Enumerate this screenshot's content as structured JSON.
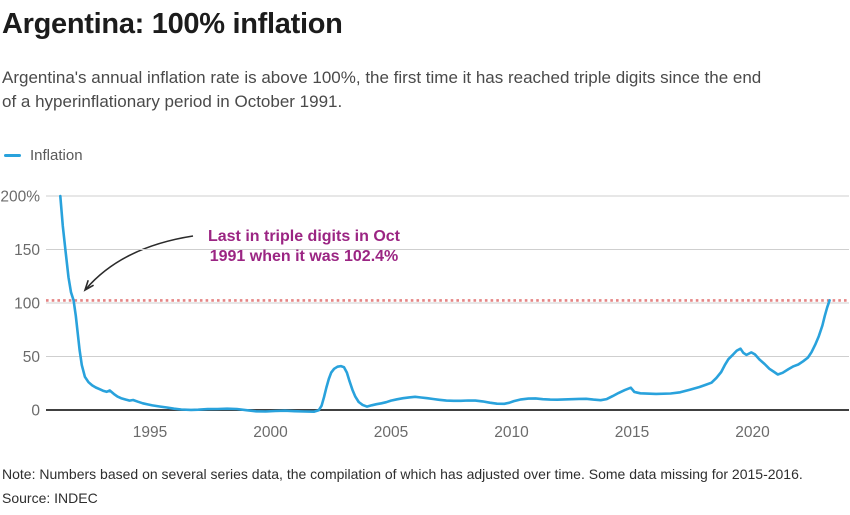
{
  "header": {
    "title": "Argentina: 100% inflation",
    "subtitle": "Argentina's annual inflation rate is above 100%, the first time it has reached triple digits since the end\nof a hyperinflationary period in October 1991."
  },
  "legend": {
    "label": "Inflation",
    "color": "#29a2dc"
  },
  "annotation": {
    "text": "Last in triple digits in Oct\n1991 when it was 102.4%",
    "color": "#9b2583"
  },
  "footer": {
    "note": "Note: Numbers based on several series data, the compilation of which has adjusted over time. Some data missing for 2015-2016.",
    "source": "Source: INDEC"
  },
  "chart_data": {
    "type": "line",
    "title": "Argentina: 100% inflation",
    "xlabel": "",
    "ylabel": "",
    "grid": true,
    "legend_position": "top-left",
    "x_range": [
      1991.25,
      2023.4
    ],
    "ylim": [
      -5,
      200
    ],
    "yticks": [
      {
        "value": 0,
        "label": "0"
      },
      {
        "value": 50,
        "label": "50"
      },
      {
        "value": 100,
        "label": "100"
      },
      {
        "value": 150,
        "label": "150"
      },
      {
        "value": 200,
        "label": "200%"
      }
    ],
    "xticks": [
      1995,
      2000,
      2005,
      2010,
      2015,
      2020
    ],
    "threshold": {
      "value": 102.4,
      "color": "#e58484",
      "meaning": "Oct 1991 level of 102.4%"
    },
    "colors": {
      "line": "#29a2dc",
      "grid": "#cfcfcf",
      "axis": "#404040",
      "tick_text": "#6b6b6b"
    },
    "series": [
      {
        "name": "Inflation",
        "color": "#29a2dc",
        "points": [
          [
            1991.28,
            200
          ],
          [
            1991.38,
            172
          ],
          [
            1991.5,
            148
          ],
          [
            1991.62,
            124
          ],
          [
            1991.72,
            110
          ],
          [
            1991.83,
            102.4
          ],
          [
            1991.92,
            88
          ],
          [
            1992.0,
            72
          ],
          [
            1992.08,
            56
          ],
          [
            1992.17,
            42
          ],
          [
            1992.3,
            31
          ],
          [
            1992.45,
            26
          ],
          [
            1992.6,
            23
          ],
          [
            1992.75,
            21
          ],
          [
            1992.9,
            19.5
          ],
          [
            1993.05,
            18
          ],
          [
            1993.2,
            17
          ],
          [
            1993.33,
            18.2
          ],
          [
            1993.5,
            15
          ],
          [
            1993.65,
            12.5
          ],
          [
            1993.8,
            11
          ],
          [
            1994.0,
            9.7
          ],
          [
            1994.15,
            8.8
          ],
          [
            1994.3,
            9.3
          ],
          [
            1994.5,
            7.8
          ],
          [
            1994.7,
            6.3
          ],
          [
            1994.9,
            5.2
          ],
          [
            1995.1,
            4.3
          ],
          [
            1995.4,
            3.3
          ],
          [
            1995.7,
            2.3
          ],
          [
            1996.0,
            1.2
          ],
          [
            1996.3,
            0.5
          ],
          [
            1996.7,
            0.1
          ],
          [
            1997.0,
            0.3
          ],
          [
            1997.4,
            0.8
          ],
          [
            1997.8,
            0.9
          ],
          [
            1998.2,
            1.2
          ],
          [
            1998.6,
            0.9
          ],
          [
            1999.0,
            -0.2
          ],
          [
            1999.4,
            -1.2
          ],
          [
            1999.8,
            -1.4
          ],
          [
            2000.2,
            -0.9
          ],
          [
            2000.6,
            -0.7
          ],
          [
            2001.0,
            -1.1
          ],
          [
            2001.4,
            -1.4
          ],
          [
            2001.8,
            -1.6
          ],
          [
            2002.0,
            -0.3
          ],
          [
            2002.12,
            4
          ],
          [
            2002.22,
            12
          ],
          [
            2002.32,
            21
          ],
          [
            2002.42,
            29
          ],
          [
            2002.52,
            35
          ],
          [
            2002.64,
            38.5
          ],
          [
            2002.78,
            40.5
          ],
          [
            2002.92,
            41
          ],
          [
            2003.05,
            40
          ],
          [
            2003.17,
            35
          ],
          [
            2003.28,
            27
          ],
          [
            2003.4,
            19
          ],
          [
            2003.52,
            12.5
          ],
          [
            2003.66,
            7.5
          ],
          [
            2003.82,
            4.8
          ],
          [
            2004.0,
            3.2
          ],
          [
            2004.2,
            4.4
          ],
          [
            2004.4,
            5.4
          ],
          [
            2004.6,
            6.3
          ],
          [
            2004.8,
            7.3
          ],
          [
            2005.0,
            8.8
          ],
          [
            2005.25,
            10
          ],
          [
            2005.5,
            11
          ],
          [
            2005.75,
            11.8
          ],
          [
            2006.0,
            12.3
          ],
          [
            2006.25,
            11.7
          ],
          [
            2006.5,
            11
          ],
          [
            2006.75,
            10.3
          ],
          [
            2007.0,
            9.5
          ],
          [
            2007.3,
            8.8
          ],
          [
            2007.6,
            8.6
          ],
          [
            2007.9,
            8.6
          ],
          [
            2008.2,
            8.9
          ],
          [
            2008.5,
            8.8
          ],
          [
            2008.8,
            8
          ],
          [
            2009.1,
            6.8
          ],
          [
            2009.4,
            5.9
          ],
          [
            2009.7,
            5.8
          ],
          [
            2009.9,
            6.7
          ],
          [
            2010.1,
            8.3
          ],
          [
            2010.4,
            9.9
          ],
          [
            2010.7,
            10.7
          ],
          [
            2011.0,
            10.8
          ],
          [
            2011.3,
            10.1
          ],
          [
            2011.6,
            9.7
          ],
          [
            2011.9,
            9.6
          ],
          [
            2012.2,
            9.9
          ],
          [
            2012.5,
            10.1
          ],
          [
            2012.8,
            10.4
          ],
          [
            2013.1,
            10.5
          ],
          [
            2013.4,
            9.7
          ],
          [
            2013.7,
            9.2
          ],
          [
            2013.95,
            10.2
          ],
          [
            2014.2,
            13
          ],
          [
            2014.45,
            16
          ],
          [
            2014.7,
            18.6
          ],
          [
            2014.95,
            20.8
          ],
          [
            2015.1,
            16.8
          ],
          [
            2015.35,
            15.6
          ],
          [
            2016.0,
            15
          ],
          [
            2016.6,
            15.4
          ],
          [
            2017.0,
            16.5
          ],
          [
            2017.4,
            19
          ],
          [
            2017.8,
            21.5
          ],
          [
            2018.05,
            23.5
          ],
          [
            2018.3,
            25.5
          ],
          [
            2018.5,
            30
          ],
          [
            2018.7,
            35.5
          ],
          [
            2018.85,
            42
          ],
          [
            2019.0,
            47.5
          ],
          [
            2019.2,
            52
          ],
          [
            2019.35,
            55.5
          ],
          [
            2019.5,
            57.3
          ],
          [
            2019.62,
            53.5
          ],
          [
            2019.75,
            51.5
          ],
          [
            2019.95,
            53.8
          ],
          [
            2020.1,
            52
          ],
          [
            2020.3,
            47
          ],
          [
            2020.5,
            43
          ],
          [
            2020.7,
            38.5
          ],
          [
            2020.9,
            35.5
          ],
          [
            2021.05,
            33.2
          ],
          [
            2021.25,
            34.8
          ],
          [
            2021.5,
            38.3
          ],
          [
            2021.7,
            40.8
          ],
          [
            2021.9,
            42.5
          ],
          [
            2022.1,
            45.5
          ],
          [
            2022.3,
            49
          ],
          [
            2022.45,
            54
          ],
          [
            2022.6,
            61
          ],
          [
            2022.75,
            69
          ],
          [
            2022.9,
            79
          ],
          [
            2023.0,
            88
          ],
          [
            2023.1,
            96
          ],
          [
            2023.2,
            102.5
          ]
        ]
      }
    ]
  }
}
